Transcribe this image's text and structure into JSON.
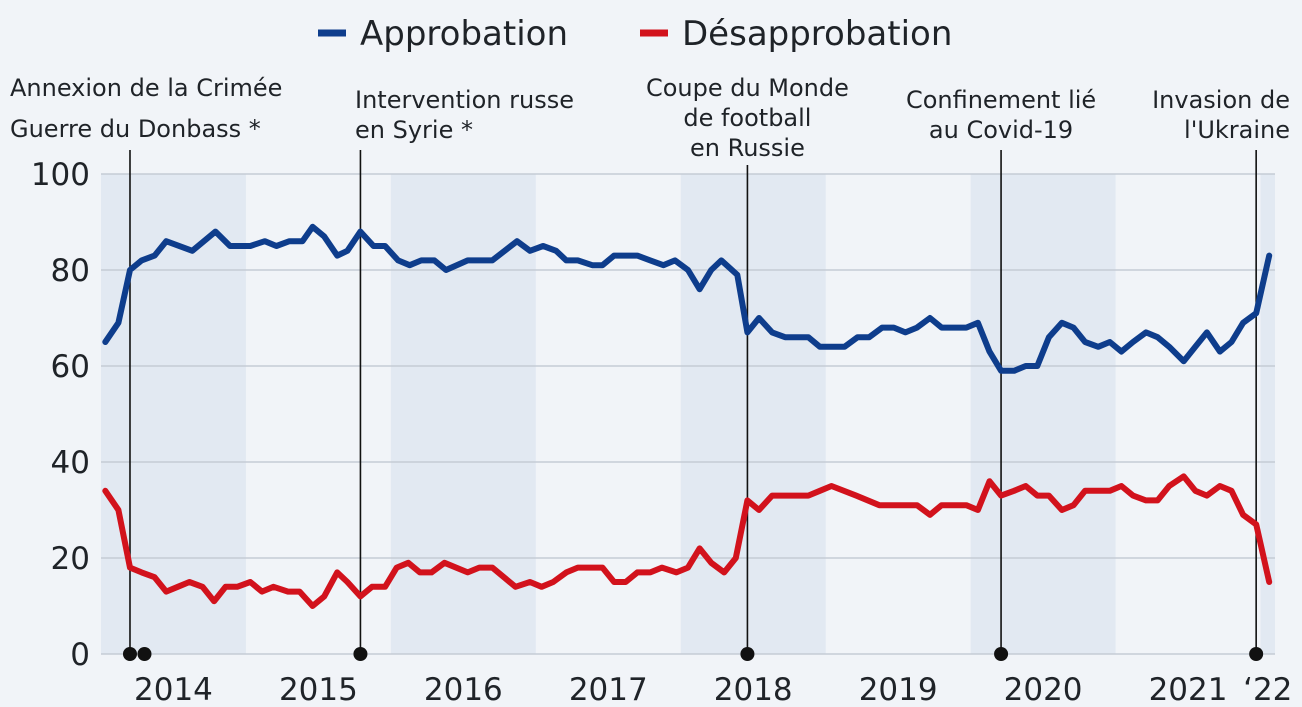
{
  "chart_data": {
    "type": "line",
    "series": [
      {
        "name": "Approbation",
        "color": "#0e3d8c",
        "x": [
          2014.03,
          2014.12,
          2014.2,
          2014.28,
          2014.37,
          2014.45,
          2014.63,
          2014.79,
          2014.89,
          2015.03,
          2015.13,
          2015.21,
          2015.3,
          2015.39,
          2015.46,
          2015.54,
          2015.63,
          2015.7,
          2015.79,
          2015.88,
          2015.96,
          2016.05,
          2016.13,
          2016.21,
          2016.3,
          2016.38,
          2016.53,
          2016.7,
          2016.87,
          2016.96,
          2017.05,
          2017.14,
          2017.21,
          2017.29,
          2017.39,
          2017.46,
          2017.54,
          2017.7,
          2017.79,
          2017.88,
          2017.96,
          2018.05,
          2018.13,
          2018.21,
          2018.28,
          2018.39,
          2018.46,
          2018.54,
          2018.63,
          2018.72,
          2018.88,
          2018.96,
          2019.13,
          2019.22,
          2019.3,
          2019.39,
          2019.47,
          2019.55,
          2019.63,
          2019.72,
          2019.8,
          2019.97,
          2020.05,
          2020.13,
          2020.21,
          2020.3,
          2020.38,
          2020.46,
          2020.54,
          2020.63,
          2020.71,
          2020.79,
          2020.88,
          2020.96,
          2021.04,
          2021.12,
          2021.21,
          2021.29,
          2021.37,
          2021.47,
          2021.55,
          2021.63,
          2021.72,
          2021.8,
          2021.88,
          2021.97,
          2022.06
        ],
        "values": [
          65,
          69,
          80,
          82,
          83,
          86,
          84,
          88,
          85,
          85,
          86,
          85,
          86,
          86,
          89,
          87,
          83,
          84,
          88,
          85,
          85,
          82,
          81,
          82,
          82,
          80,
          82,
          82,
          86,
          84,
          85,
          84,
          82,
          82,
          81,
          81,
          83,
          83,
          82,
          81,
          82,
          80,
          76,
          80,
          82,
          79,
          67,
          70,
          67,
          66,
          66,
          64,
          64,
          66,
          66,
          68,
          68,
          67,
          68,
          70,
          68,
          68,
          69,
          63,
          59,
          59,
          60,
          60,
          66,
          69,
          68,
          65,
          64,
          65,
          63,
          65,
          67,
          66,
          64,
          61,
          64,
          67,
          63,
          65,
          69,
          71,
          83
        ]
      },
      {
        "name": "Désapprobation",
        "color": "#d2121c",
        "x": [
          2014.03,
          2014.12,
          2014.2,
          2014.28,
          2014.37,
          2014.45,
          2014.53,
          2014.61,
          2014.7,
          2014.78,
          2014.86,
          2014.94,
          2015.03,
          2015.11,
          2015.19,
          2015.29,
          2015.37,
          2015.46,
          2015.54,
          2015.63,
          2015.7,
          2015.79,
          2015.87,
          2015.96,
          2016.04,
          2016.12,
          2016.2,
          2016.28,
          2016.37,
          2016.53,
          2016.61,
          2016.7,
          2016.78,
          2016.86,
          2016.96,
          2017.04,
          2017.12,
          2017.21,
          2017.29,
          2017.46,
          2017.54,
          2017.62,
          2017.7,
          2017.79,
          2017.87,
          2017.97,
          2018.05,
          2018.13,
          2018.21,
          2018.3,
          2018.38,
          2018.46,
          2018.54,
          2018.63,
          2018.88,
          2018.96,
          2019.04,
          2019.21,
          2019.37,
          2019.63,
          2019.72,
          2019.8,
          2019.97,
          2020.05,
          2020.13,
          2020.21,
          2020.3,
          2020.38,
          2020.46,
          2020.54,
          2020.63,
          2020.71,
          2020.79,
          2020.96,
          2021.04,
          2021.12,
          2021.21,
          2021.29,
          2021.37,
          2021.47,
          2021.55,
          2021.63,
          2021.72,
          2021.8,
          2021.88,
          2021.97,
          2022.06
        ],
        "values": [
          34,
          30,
          18,
          17,
          16,
          13,
          14,
          15,
          14,
          11,
          14,
          14,
          15,
          13,
          14,
          13,
          13,
          10,
          12,
          17,
          15,
          12,
          14,
          14,
          18,
          19,
          17,
          17,
          19,
          17,
          18,
          18,
          16,
          14,
          15,
          14,
          15,
          17,
          18,
          18,
          15,
          15,
          17,
          17,
          18,
          17,
          18,
          22,
          19,
          17,
          20,
          32,
          30,
          33,
          33,
          34,
          35,
          33,
          31,
          31,
          29,
          31,
          31,
          30,
          36,
          33,
          34,
          35,
          33,
          33,
          30,
          31,
          34,
          34,
          35,
          33,
          32,
          32,
          35,
          37,
          34,
          33,
          35,
          34,
          29,
          27,
          15
        ]
      }
    ],
    "annotations": [
      {
        "x": 2014.2,
        "text": [
          "Annexion de la Crimée"
        ]
      },
      {
        "x": 2014.3,
        "text": [
          "Guerre du Donbass *"
        ]
      },
      {
        "x": 2015.79,
        "text": [
          "Intervention russe",
          "en Syrie *"
        ]
      },
      {
        "x": 2018.46,
        "text": [
          "Coupe du Monde",
          "de football",
          "en Russie"
        ]
      },
      {
        "x": 2020.21,
        "text": [
          "Confinement lié",
          "au Covid-19"
        ]
      },
      {
        "x": 2021.97,
        "text": [
          "Invasion de",
          "l'Ukraine"
        ]
      }
    ],
    "xlim": [
      2014,
      2022.1
    ],
    "xticks": [
      2014,
      2015,
      2016,
      2017,
      2018,
      2019,
      2020,
      2021,
      {
        "value": 2022,
        "label": "‘22"
      }
    ],
    "ylim": [
      0,
      100
    ],
    "yticks": [
      0,
      20,
      40,
      60,
      80,
      100
    ],
    "grid": true
  }
}
